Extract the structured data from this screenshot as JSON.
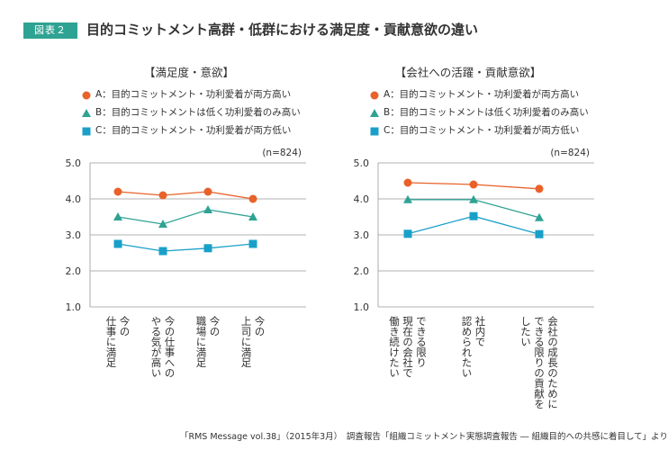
{
  "figure": {
    "tag": "図表２",
    "title": "目的コミットメント高群・低群における満足度・貢献意欲の違い",
    "source": "「RMS Message vol.38」（2015年3月）　調査報告「組織コミットメント実態調査報告 ― 組織目的への共感に着目して」より"
  },
  "colors": {
    "accent": "#2fa393",
    "seriesA": "#e8622a",
    "seriesB": "#2fa393",
    "seriesC": "#1aa0c8"
  },
  "chart_data": [
    {
      "type": "line",
      "title": "【満足度・意欲】",
      "note": "(n=824)",
      "ylim": [
        1.0,
        5.0
      ],
      "yticks": [
        "1.0",
        "2.0",
        "3.0",
        "4.0",
        "5.0"
      ],
      "categories": [
        [
          "今の",
          "仕事に満足"
        ],
        [
          "今の仕事への",
          "やる気が高い"
        ],
        [
          "今の",
          "職場に満足"
        ],
        [
          "今の",
          "上司に満足"
        ]
      ],
      "series": [
        {
          "name": "A：目的コミットメント・功利愛着が両方高い",
          "marker": "circle",
          "values": [
            4.2,
            4.1,
            4.2,
            4.0
          ]
        },
        {
          "name": "B：目的コミットメントは低く功利愛着のみ高い",
          "marker": "triangle",
          "values": [
            3.5,
            3.3,
            3.7,
            3.5
          ]
        },
        {
          "name": "C：目的コミットメント・功利愛着が両方低い",
          "marker": "square",
          "values": [
            2.75,
            2.55,
            2.63,
            2.75
          ]
        }
      ]
    },
    {
      "type": "line",
      "title": "【会社への活躍・貢献意欲】",
      "note": "(n=824)",
      "ylim": [
        1.0,
        5.0
      ],
      "yticks": [
        "1.0",
        "2.0",
        "3.0",
        "4.0",
        "5.0"
      ],
      "categories": [
        [
          "できる限り",
          "現在の会社で",
          "働き続けたい"
        ],
        [
          "社内で",
          "認められたい"
        ],
        [
          "会社の成長のために",
          "できる限りの貢献を",
          "したい"
        ]
      ],
      "series": [
        {
          "name": "A：目的コミットメント・功利愛着が両方高い",
          "marker": "circle",
          "values": [
            4.45,
            4.4,
            4.28
          ]
        },
        {
          "name": "B：目的コミットメントは低く功利愛着のみ高い",
          "marker": "triangle",
          "values": [
            3.98,
            3.98,
            3.48
          ]
        },
        {
          "name": "C：目的コミットメント・功利愛着が両方低い",
          "marker": "square",
          "values": [
            3.03,
            3.52,
            3.02
          ]
        }
      ]
    }
  ]
}
